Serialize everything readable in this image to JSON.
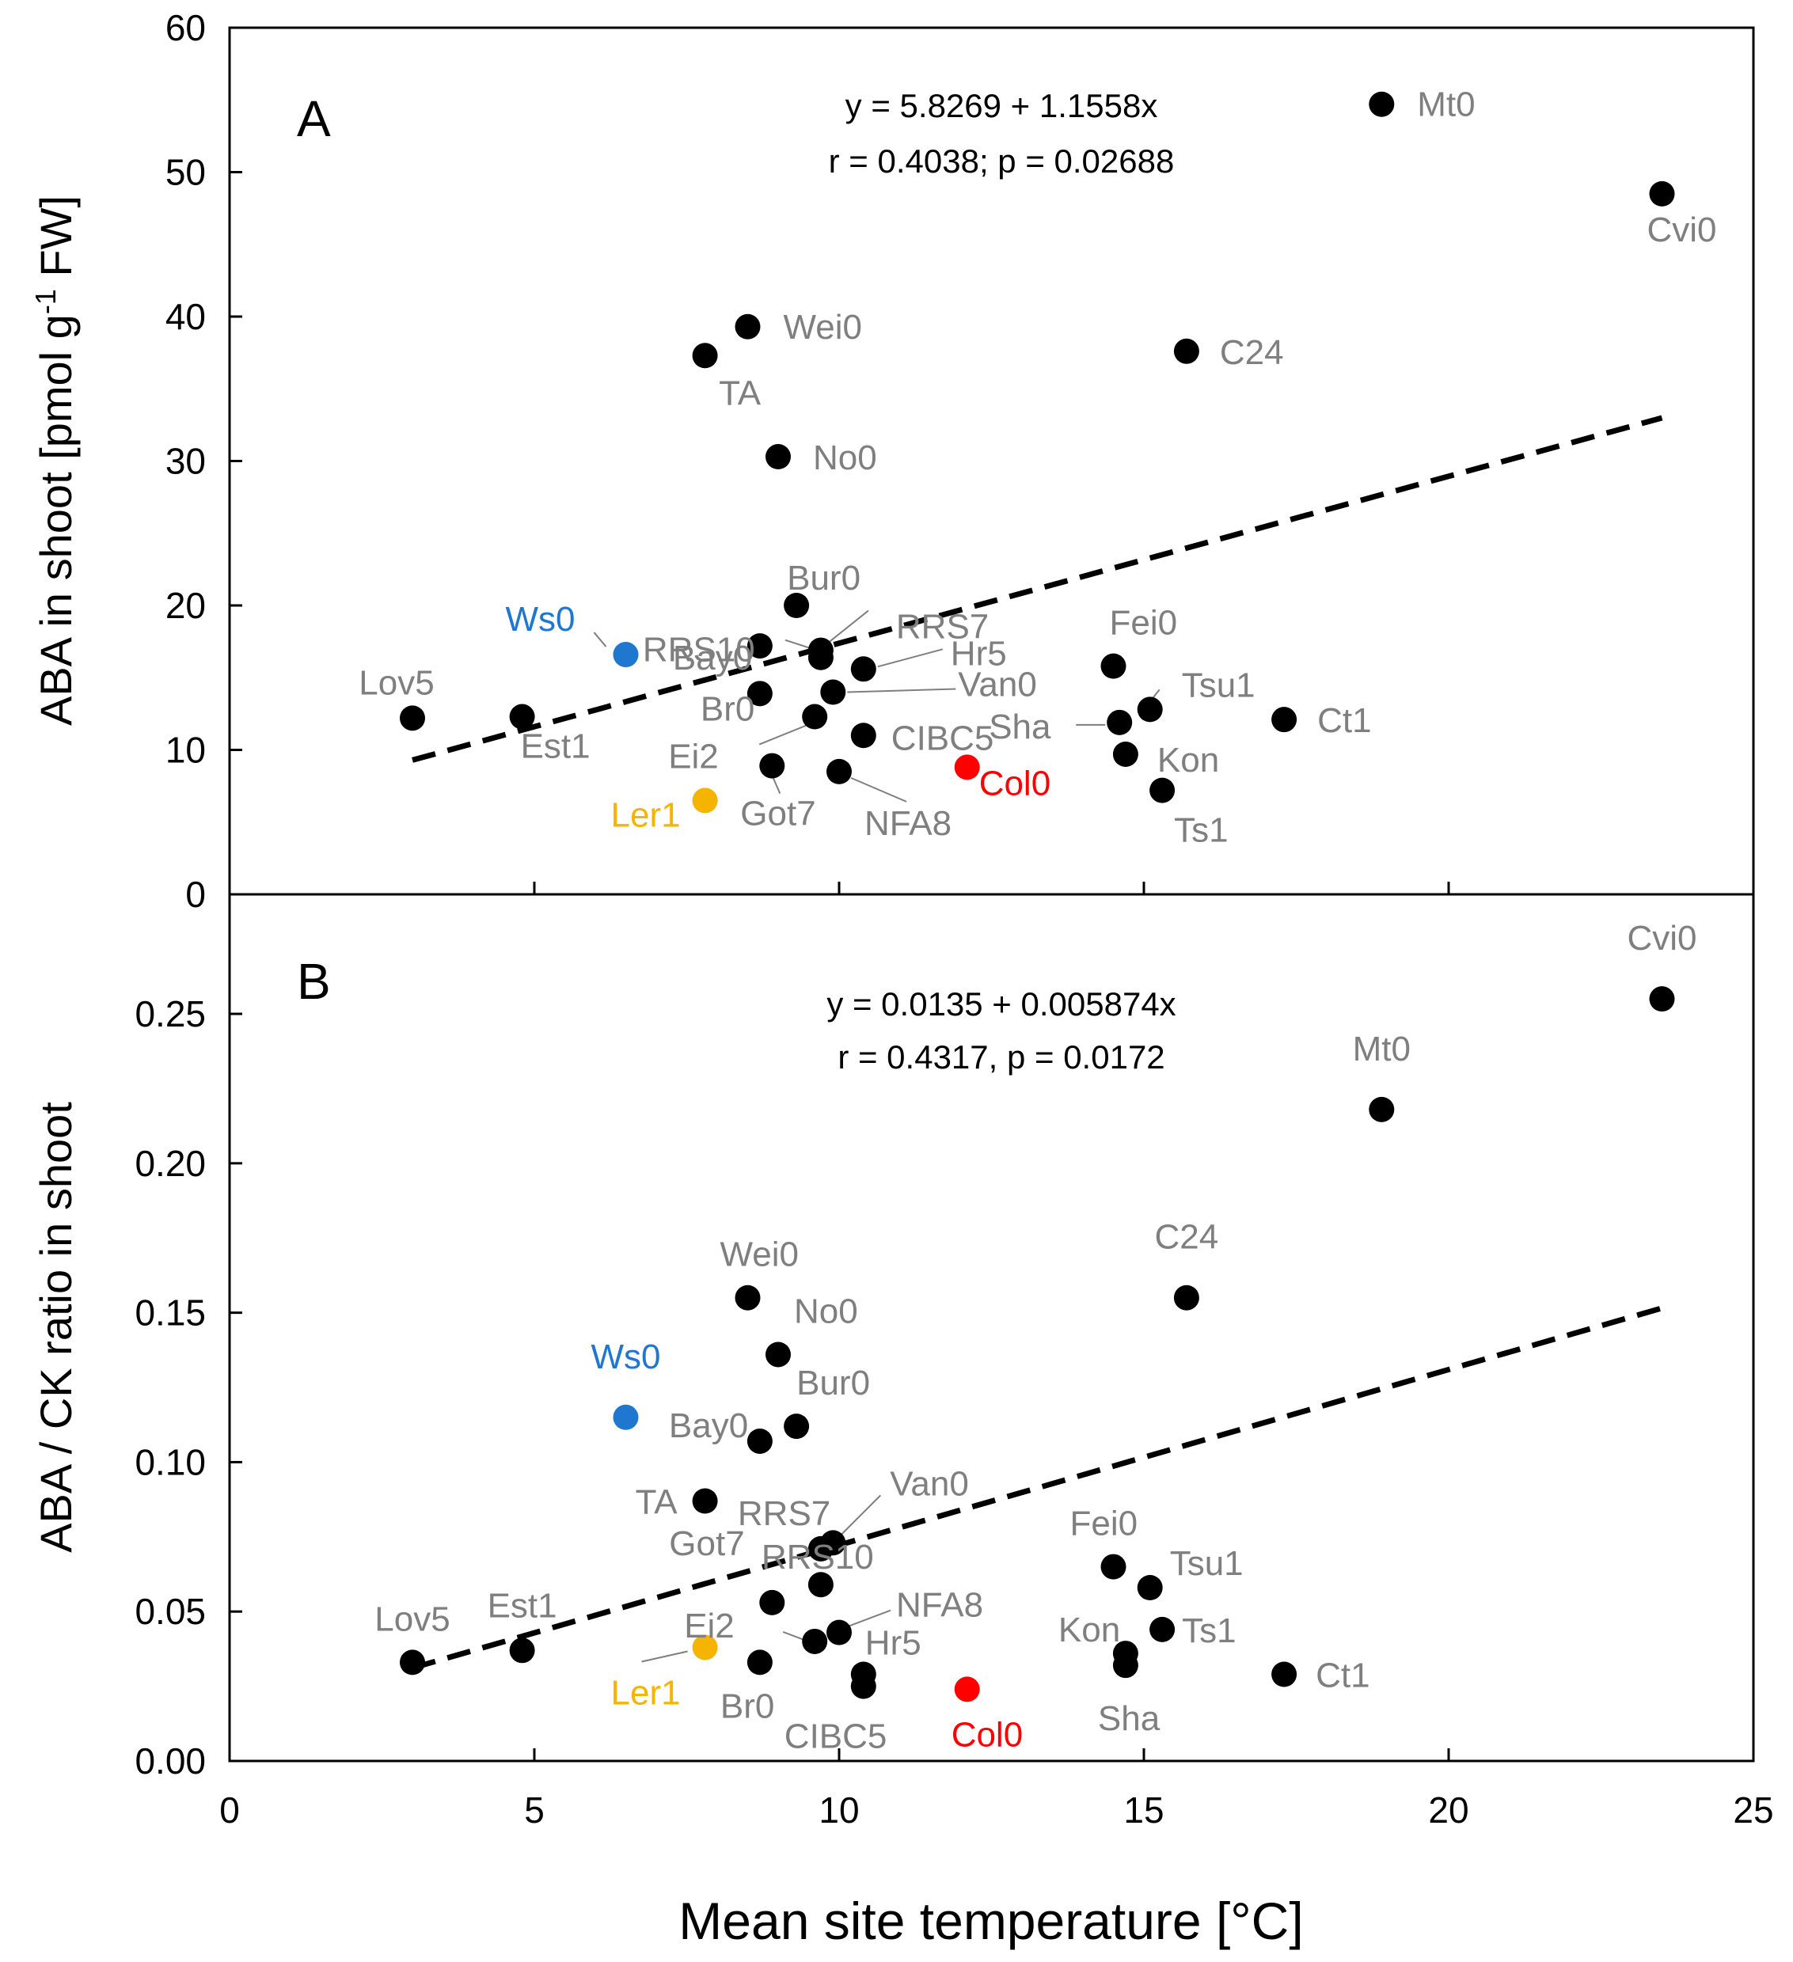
{
  "colors": {
    "default": "#000000",
    "label": "#7f7f7f",
    "Ws0": "#1f77d0",
    "Ler1": "#f5b400",
    "Col0": "#ff0000"
  },
  "x_axis": {
    "title": "Mean site temperature [°C]",
    "ticks": [
      0,
      5,
      10,
      15,
      20,
      25
    ],
    "range": [
      0,
      25
    ]
  },
  "chart_data": [
    {
      "type": "scatter",
      "panel": "A",
      "title": "",
      "xlabel": "Mean site temperature [°C]",
      "ylabel": "ABA in shoot [pmol g⁻¹ FW]",
      "ylabel_parts": [
        "ABA in shoot [pmol g",
        "-1",
        " FW]"
      ],
      "xlim": [
        0,
        25
      ],
      "ylim": [
        0,
        60
      ],
      "yticks": [
        "0",
        "10",
        "20",
        "30",
        "40",
        "50",
        "60"
      ],
      "equation": "y = 5.8269 + 1.1558x",
      "stats": "r = 0.4038; p = 0.02688",
      "fit": {
        "intercept": 5.8269,
        "slope": 1.1558,
        "x_range": [
          3,
          23.5
        ]
      },
      "points": [
        {
          "name": "Lov5",
          "x": 3.0,
          "y": 12.2
        },
        {
          "name": "Est1",
          "x": 4.8,
          "y": 12.3
        },
        {
          "name": "Ws0",
          "x": 6.5,
          "y": 16.6,
          "color": "Ws0"
        },
        {
          "name": "Ler1",
          "x": 7.8,
          "y": 6.5,
          "color": "Ler1"
        },
        {
          "name": "TA",
          "x": 7.8,
          "y": 37.3
        },
        {
          "name": "Wei0",
          "x": 8.5,
          "y": 39.3
        },
        {
          "name": "Bay0",
          "x": 8.7,
          "y": 17.2
        },
        {
          "name": "Br0",
          "x": 8.7,
          "y": 13.9
        },
        {
          "name": "Got7",
          "x": 8.9,
          "y": 8.9
        },
        {
          "name": "No0",
          "x": 9.0,
          "y": 30.3
        },
        {
          "name": "Bur0",
          "x": 9.3,
          "y": 20.0
        },
        {
          "name": "Ei2",
          "x": 9.6,
          "y": 12.3
        },
        {
          "name": "RRS10",
          "x": 9.7,
          "y": 16.4
        },
        {
          "name": "RRS7",
          "x": 9.7,
          "y": 16.9
        },
        {
          "name": "Van0",
          "x": 9.9,
          "y": 14.0
        },
        {
          "name": "NFA8",
          "x": 10.0,
          "y": 8.5
        },
        {
          "name": "Hr5",
          "x": 10.4,
          "y": 15.6
        },
        {
          "name": "CIBC5",
          "x": 10.4,
          "y": 11.0
        },
        {
          "name": "Col0",
          "x": 12.1,
          "y": 8.8,
          "color": "Col0"
        },
        {
          "name": "Fei0",
          "x": 14.5,
          "y": 15.8
        },
        {
          "name": "Sha",
          "x": 14.6,
          "y": 11.9
        },
        {
          "name": "Kon",
          "x": 14.7,
          "y": 9.7
        },
        {
          "name": "Tsu1",
          "x": 15.1,
          "y": 12.8
        },
        {
          "name": "Ts1",
          "x": 15.3,
          "y": 7.2
        },
        {
          "name": "C24",
          "x": 15.7,
          "y": 37.6
        },
        {
          "name": "Ct1",
          "x": 17.3,
          "y": 12.1
        },
        {
          "name": "Mt0",
          "x": 18.9,
          "y": 54.7
        },
        {
          "name": "Cvi0",
          "x": 23.5,
          "y": 48.5
        }
      ]
    },
    {
      "type": "scatter",
      "panel": "B",
      "title": "",
      "xlabel": "Mean site temperature [°C]",
      "ylabel": "ABA / CK ratio in shoot",
      "xlim": [
        0,
        25
      ],
      "ylim": [
        0,
        0.29
      ],
      "yticks": [
        "0.00",
        "0.05",
        "0.10",
        "0.15",
        "0.20",
        "0.25"
      ],
      "equation": "y = 0.0135 + 0.005874x",
      "stats": "r = 0.4317, p = 0.0172",
      "fit": {
        "intercept": 0.0135,
        "slope": 0.005874,
        "x_range": [
          3,
          23.5
        ]
      },
      "points": [
        {
          "name": "Lov5",
          "x": 3.0,
          "y": 0.033
        },
        {
          "name": "Est1",
          "x": 4.8,
          "y": 0.037
        },
        {
          "name": "Ws0",
          "x": 6.5,
          "y": 0.115,
          "color": "Ws0"
        },
        {
          "name": "Ler1",
          "x": 7.8,
          "y": 0.038,
          "color": "Ler1"
        },
        {
          "name": "TA",
          "x": 7.8,
          "y": 0.087
        },
        {
          "name": "Wei0",
          "x": 8.5,
          "y": 0.155
        },
        {
          "name": "Bay0",
          "x": 8.7,
          "y": 0.107
        },
        {
          "name": "Br0",
          "x": 8.7,
          "y": 0.033
        },
        {
          "name": "Got7",
          "x": 8.9,
          "y": 0.053
        },
        {
          "name": "No0",
          "x": 9.0,
          "y": 0.136
        },
        {
          "name": "Bur0",
          "x": 9.3,
          "y": 0.112
        },
        {
          "name": "Ei2",
          "x": 9.6,
          "y": 0.04
        },
        {
          "name": "RRS10",
          "x": 9.7,
          "y": 0.059
        },
        {
          "name": "RRS7",
          "x": 9.7,
          "y": 0.071
        },
        {
          "name": "Van0",
          "x": 9.9,
          "y": 0.073
        },
        {
          "name": "NFA8",
          "x": 10.0,
          "y": 0.043
        },
        {
          "name": "Hr5",
          "x": 10.4,
          "y": 0.029
        },
        {
          "name": "CIBC5",
          "x": 10.4,
          "y": 0.025
        },
        {
          "name": "Col0",
          "x": 12.1,
          "y": 0.024,
          "color": "Col0"
        },
        {
          "name": "Fei0",
          "x": 14.5,
          "y": 0.065
        },
        {
          "name": "Sha",
          "x": 14.7,
          "y": 0.032
        },
        {
          "name": "Kon",
          "x": 14.7,
          "y": 0.036
        },
        {
          "name": "Tsu1",
          "x": 15.1,
          "y": 0.058
        },
        {
          "name": "Ts1",
          "x": 15.3,
          "y": 0.044
        },
        {
          "name": "C24",
          "x": 15.7,
          "y": 0.155
        },
        {
          "name": "Ct1",
          "x": 17.3,
          "y": 0.029
        },
        {
          "name": "Mt0",
          "x": 18.9,
          "y": 0.218
        },
        {
          "name": "Cvi0",
          "x": 23.5,
          "y": 0.255
        }
      ]
    }
  ]
}
